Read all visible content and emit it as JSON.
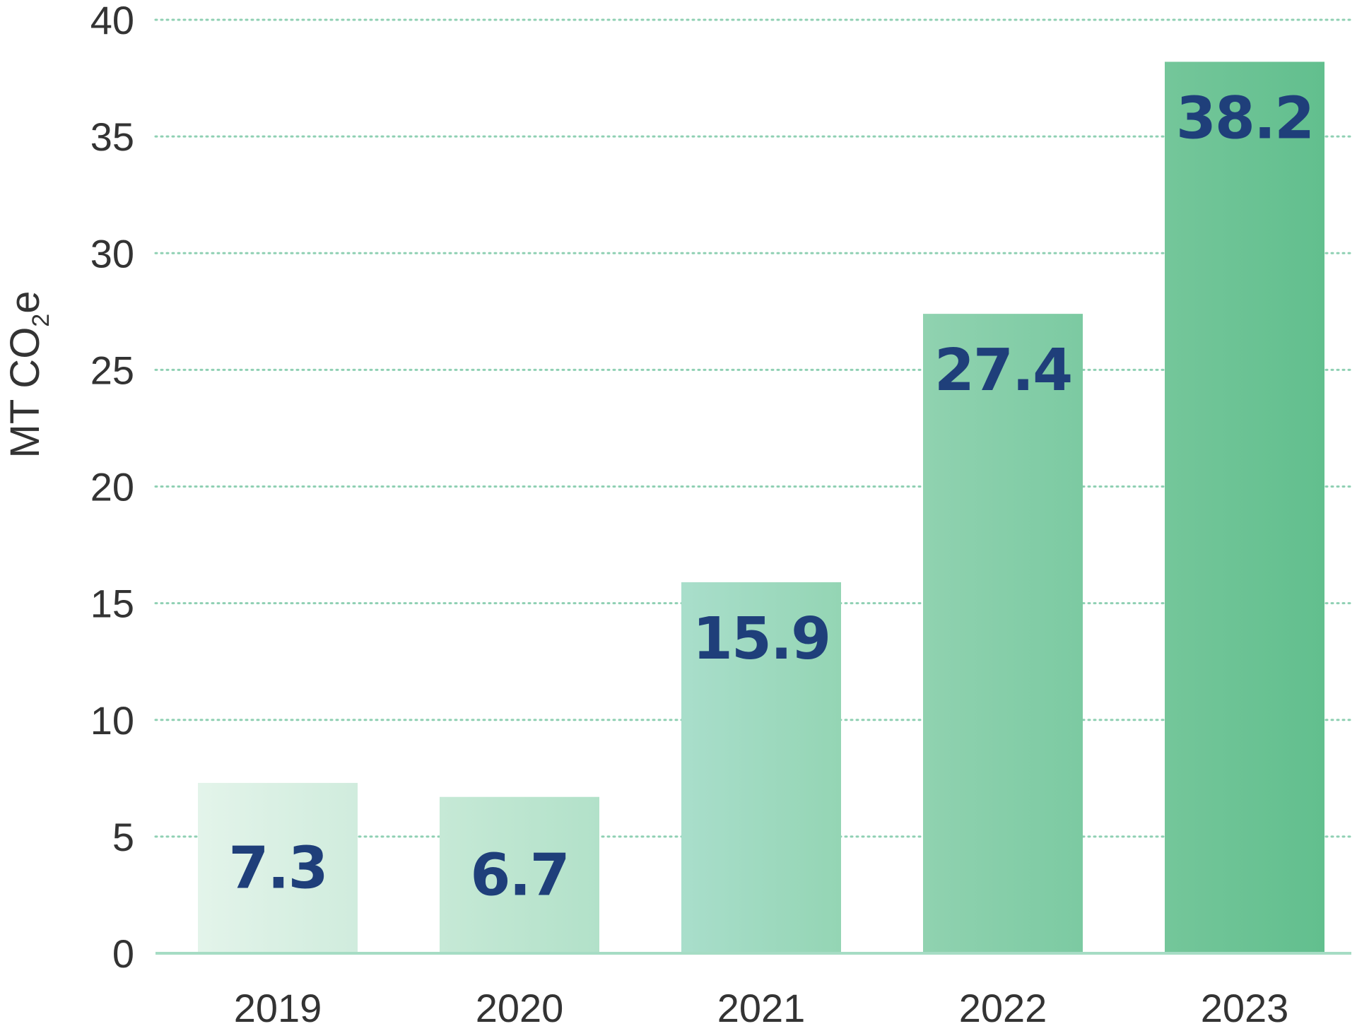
{
  "chart_data": {
    "type": "bar",
    "categories": [
      "2019",
      "2020",
      "2021",
      "2022",
      "2023"
    ],
    "values": [
      7.3,
      6.7,
      15.9,
      27.4,
      38.2
    ],
    "value_labels": [
      "7.3",
      "6.7",
      "15.9",
      "27.4",
      "38.2"
    ],
    "title": "",
    "xlabel": "",
    "ylabel": "MT CO",
    "ylabel_subscript": "2",
    "ylabel_suffix": "e",
    "ylim": [
      0,
      40
    ],
    "yticks": [
      0,
      5,
      10,
      15,
      20,
      25,
      30,
      35,
      40
    ],
    "ytick_labels": [
      "0",
      "5",
      "10",
      "15",
      "20",
      "25",
      "30",
      "35",
      "40"
    ],
    "grid": true,
    "legend": "none",
    "colors": {
      "bar_gradient": [
        [
          "#e3f4ea",
          "#d0ecdd"
        ],
        [
          "#c6e9d6",
          "#b2e1c9"
        ],
        [
          "#a9decb",
          "#94d5b4"
        ],
        [
          "#90d2b0",
          "#7ccaa2"
        ],
        [
          "#74c69a",
          "#62bf8e"
        ]
      ],
      "value_label": "#1f3f7a",
      "gridline": "#8fd0b3",
      "axis_text": "#333333"
    }
  }
}
